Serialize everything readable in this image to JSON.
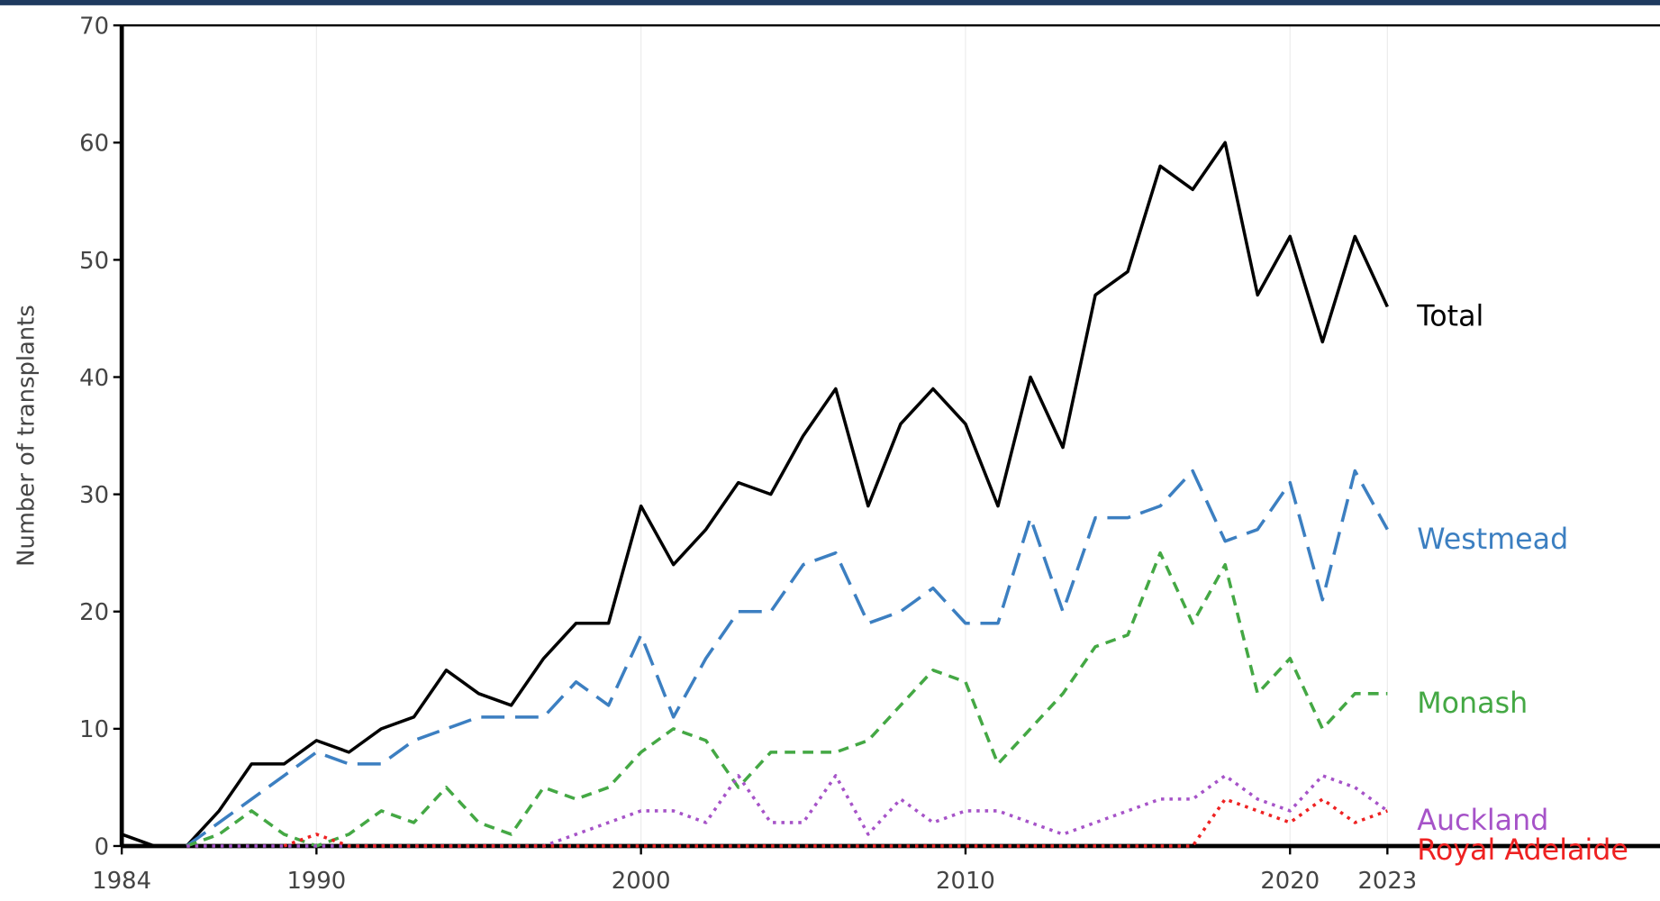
{
  "chart_data": {
    "type": "line",
    "y_label": "Number of transplants",
    "x": [
      1984,
      1985,
      1986,
      1987,
      1988,
      1989,
      1990,
      1991,
      1992,
      1993,
      1994,
      1995,
      1996,
      1997,
      1998,
      1999,
      2000,
      2001,
      2002,
      2003,
      2004,
      2005,
      2006,
      2007,
      2008,
      2009,
      2010,
      2011,
      2012,
      2013,
      2014,
      2015,
      2016,
      2017,
      2018,
      2019,
      2020,
      2021,
      2022,
      2023
    ],
    "xlim": [
      1984,
      2031.4
    ],
    "xticks": [
      1984,
      1990,
      2000,
      2010,
      2020,
      2023
    ],
    "ylim": [
      0,
      70
    ],
    "yticks": [
      0,
      10,
      20,
      30,
      40,
      50,
      60,
      70
    ],
    "grid": true,
    "series": [
      {
        "name": "Total",
        "color": "#000000",
        "dash": "solid",
        "values": [
          1,
          0,
          0,
          3,
          7,
          7,
          9,
          8,
          10,
          11,
          15,
          13,
          12,
          16,
          19,
          19,
          29,
          24,
          27,
          31,
          30,
          35,
          39,
          29,
          36,
          39,
          36,
          29,
          40,
          34,
          47,
          49,
          58,
          56,
          60,
          47,
          52,
          43,
          52,
          46
        ]
      },
      {
        "name": "Westmead",
        "color": "#3c7fc1",
        "dash": "long",
        "values": [
          null,
          null,
          0,
          2,
          4,
          6,
          8,
          7,
          7,
          9,
          10,
          11,
          11,
          11,
          14,
          12,
          18,
          11,
          16,
          20,
          20,
          24,
          25,
          19,
          20,
          22,
          19,
          19,
          28,
          20,
          28,
          28,
          29,
          32,
          26,
          27,
          31,
          21,
          32,
          27
        ]
      },
      {
        "name": "Monash",
        "color": "#44a844",
        "dash": "medium",
        "values": [
          null,
          null,
          0,
          1,
          3,
          1,
          0,
          1,
          3,
          2,
          5,
          2,
          1,
          5,
          4,
          5,
          8,
          10,
          9,
          5,
          8,
          8,
          8,
          9,
          12,
          15,
          14,
          7,
          10,
          13,
          17,
          18,
          25,
          19,
          24,
          13,
          16,
          10,
          13,
          13
        ]
      },
      {
        "name": "Auckland",
        "color": "#a653c8",
        "dash": "dot",
        "values": [
          null,
          null,
          0,
          0,
          0,
          0,
          0,
          0,
          0,
          0,
          0,
          0,
          0,
          0,
          1,
          2,
          3,
          3,
          2,
          6,
          2,
          2,
          6,
          1,
          4,
          2,
          3,
          3,
          2,
          1,
          2,
          3,
          4,
          4,
          6,
          4,
          3,
          6,
          5,
          3
        ]
      },
      {
        "name": "Royal Adelaide",
        "color": "#ee2222",
        "dash": "dot",
        "values": [
          null,
          null,
          null,
          null,
          null,
          0,
          1,
          0,
          0,
          0,
          0,
          0,
          0,
          0,
          0,
          0,
          0,
          0,
          0,
          0,
          0,
          0,
          0,
          0,
          0,
          0,
          0,
          0,
          0,
          0,
          0,
          0,
          0,
          0,
          4,
          3,
          2,
          4,
          2,
          3
        ]
      }
    ]
  }
}
